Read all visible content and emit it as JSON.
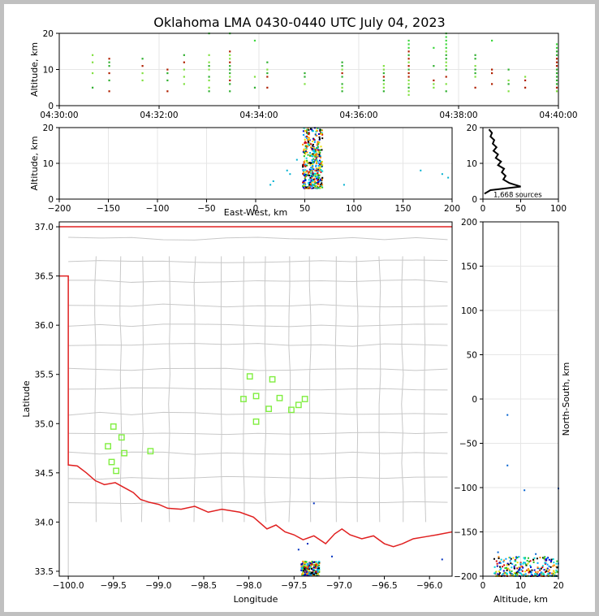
{
  "title": "Oklahoma LMA 0430-0440 UTC July 04, 2023",
  "colors": {
    "state_border": "#e02020",
    "county_lines": "#c8c8c8",
    "station_marker": "#80ee40",
    "grid": "#e6e6e6"
  },
  "chart_data": [
    {
      "id": "time-height",
      "type": "scatter",
      "ylabel": "Altitude, km",
      "ylim": [
        0,
        20
      ],
      "xlim": [
        "04:30:00",
        "04:40:00"
      ],
      "xticks": [
        "04:30:00",
        "04:32:00",
        "04:34:00",
        "04:36:00",
        "04:38:00",
        "04:40:00"
      ],
      "yticks": [
        "0",
        "10",
        "20"
      ],
      "columns": [
        {
          "t": "04:30:40",
          "z": [
            5,
            9,
            12,
            14
          ]
        },
        {
          "t": "04:31:00",
          "z": [
            4,
            7,
            9,
            11,
            12,
            13
          ]
        },
        {
          "t": "04:31:40",
          "z": [
            7,
            9,
            11,
            13
          ]
        },
        {
          "t": "04:32:10",
          "z": [
            4,
            7,
            9,
            10
          ]
        },
        {
          "t": "04:32:30",
          "z": [
            6,
            8,
            10,
            12,
            14
          ]
        },
        {
          "t": "04:33:00",
          "z": [
            4,
            5,
            7,
            8,
            10,
            11,
            12,
            14,
            20
          ]
        },
        {
          "t": "04:33:25",
          "z": [
            4,
            6,
            7,
            8,
            9,
            10,
            11,
            12,
            13,
            14,
            15,
            20
          ]
        },
        {
          "t": "04:33:55",
          "z": [
            5,
            8,
            18
          ]
        },
        {
          "t": "04:34:10",
          "z": [
            5,
            8,
            9,
            10,
            12
          ]
        },
        {
          "t": "04:34:55",
          "z": [
            6,
            8,
            9
          ]
        },
        {
          "t": "04:35:40",
          "z": [
            4,
            5,
            6,
            8,
            9,
            10,
            11,
            12
          ]
        },
        {
          "t": "04:36:30",
          "z": [
            4,
            5,
            6,
            7,
            8,
            9,
            10,
            11
          ]
        },
        {
          "t": "04:37:00",
          "z": [
            3,
            4,
            5,
            6,
            7,
            8,
            9,
            10,
            11,
            12,
            13,
            14,
            15,
            16,
            17,
            18
          ]
        },
        {
          "t": "04:37:30",
          "z": [
            5,
            6,
            7,
            11,
            16
          ]
        },
        {
          "t": "04:37:45",
          "z": [
            4,
            6,
            8,
            10,
            11,
            12,
            13,
            14,
            15,
            16,
            17,
            18,
            19,
            20
          ]
        },
        {
          "t": "04:38:20",
          "z": [
            5,
            8,
            9,
            10,
            11,
            13,
            14
          ]
        },
        {
          "t": "04:38:40",
          "z": [
            6,
            9,
            10,
            18
          ]
        },
        {
          "t": "04:39:00",
          "z": [
            4,
            6,
            7,
            10
          ]
        },
        {
          "t": "04:39:20",
          "z": [
            5,
            7,
            8
          ]
        },
        {
          "t": "04:39:58",
          "z": [
            4,
            5,
            6,
            7,
            8,
            9,
            10,
            11,
            12,
            13,
            14,
            15,
            16,
            17
          ]
        }
      ]
    },
    {
      "id": "ew-height",
      "type": "scatter",
      "xlabel": "East-West, km",
      "ylabel": "Altitude, km",
      "xlim": [
        -200,
        200
      ],
      "ylim": [
        0,
        20
      ],
      "xticks": [
        "−200",
        "−150",
        "−100",
        "−50",
        "0",
        "50",
        "100",
        "150",
        "200"
      ],
      "yticks": [
        "0",
        "10",
        "20"
      ],
      "core": {
        "x": [
          48,
          68
        ],
        "z": [
          3,
          20
        ]
      },
      "outliers": [
        {
          "x": 15,
          "z": 4
        },
        {
          "x": 18,
          "z": 5
        },
        {
          "x": 32,
          "z": 8
        },
        {
          "x": 35,
          "z": 7
        },
        {
          "x": 42,
          "z": 11
        },
        {
          "x": 90,
          "z": 4
        },
        {
          "x": 168,
          "z": 8
        },
        {
          "x": 190,
          "z": 7
        },
        {
          "x": 196,
          "z": 6
        }
      ]
    },
    {
      "id": "altitude-histogram",
      "type": "line",
      "xlim": [
        0,
        100
      ],
      "ylim": [
        0,
        20
      ],
      "xticks": [
        "0",
        "50",
        "100"
      ],
      "yticks": [
        "0",
        "10",
        "20"
      ],
      "annotation": "1,668 sources",
      "profile": [
        {
          "z": 19.5,
          "n": 8
        },
        {
          "z": 18.5,
          "n": 12
        },
        {
          "z": 17.5,
          "n": 10
        },
        {
          "z": 16.5,
          "n": 15
        },
        {
          "z": 15.5,
          "n": 13
        },
        {
          "z": 14.5,
          "n": 18
        },
        {
          "z": 13.5,
          "n": 14
        },
        {
          "z": 12.5,
          "n": 20
        },
        {
          "z": 11.5,
          "n": 17
        },
        {
          "z": 10.5,
          "n": 24
        },
        {
          "z": 9.5,
          "n": 20
        },
        {
          "z": 8.5,
          "n": 28
        },
        {
          "z": 7.5,
          "n": 25
        },
        {
          "z": 6.5,
          "n": 30
        },
        {
          "z": 5.5,
          "n": 27
        },
        {
          "z": 4.5,
          "n": 35
        },
        {
          "z": 3.5,
          "n": 50
        },
        {
          "z": 2.5,
          "n": 10
        },
        {
          "z": 1.5,
          "n": 2
        }
      ]
    },
    {
      "id": "plan-view",
      "type": "scatter",
      "xlabel": "Longitude",
      "ylabel": "Latitude",
      "xlim": [
        -100.1,
        -95.75
      ],
      "ylim": [
        33.45,
        37.05
      ],
      "xticks": [
        "−100.0",
        "−99.5",
        "−99.0",
        "−98.5",
        "−98.0",
        "−97.5",
        "−97.0",
        "−96.5",
        "−96.0"
      ],
      "yticks": [
        "33.5",
        "34.0",
        "34.5",
        "35.0",
        "35.5",
        "36.0",
        "36.5",
        "37.0"
      ],
      "stations": [
        {
          "lon": -99.5,
          "lat": 34.97
        },
        {
          "lon": -99.41,
          "lat": 34.86
        },
        {
          "lon": -99.56,
          "lat": 34.77
        },
        {
          "lon": -99.38,
          "lat": 34.7
        },
        {
          "lon": -99.52,
          "lat": 34.61
        },
        {
          "lon": -99.47,
          "lat": 34.52
        },
        {
          "lon": -99.09,
          "lat": 34.72
        },
        {
          "lon": -97.99,
          "lat": 35.48
        },
        {
          "lon": -97.74,
          "lat": 35.45
        },
        {
          "lon": -98.06,
          "lat": 35.25
        },
        {
          "lon": -97.92,
          "lat": 35.28
        },
        {
          "lon": -97.66,
          "lat": 35.26
        },
        {
          "lon": -97.78,
          "lat": 35.15
        },
        {
          "lon": -97.53,
          "lat": 35.14
        },
        {
          "lon": -97.45,
          "lat": 35.19
        },
        {
          "lon": -97.38,
          "lat": 35.25
        },
        {
          "lon": -97.92,
          "lat": 35.02
        }
      ],
      "source_cluster": {
        "lon": [
          -97.42,
          -97.22
        ],
        "lat": [
          33.45,
          33.6
        ]
      },
      "scattered_sources": [
        {
          "lon": -97.28,
          "lat": 34.19
        },
        {
          "lon": -97.45,
          "lat": 33.72
        },
        {
          "lon": -97.08,
          "lat": 33.65
        },
        {
          "lon": -97.35,
          "lat": 33.78
        },
        {
          "lon": -95.86,
          "lat": 33.62
        }
      ]
    },
    {
      "id": "height-ns",
      "type": "scatter",
      "xlabel": "Altitude, km",
      "ylabel": "North-South, km",
      "xlim": [
        0,
        20
      ],
      "ylim": [
        -200,
        200
      ],
      "xticks": [
        "0",
        "10",
        "20"
      ],
      "yticks": [
        "−200",
        "−150",
        "−100",
        "−50",
        "0",
        "50",
        "100",
        "150",
        "200"
      ],
      "core": {
        "z": [
          3,
          20
        ],
        "y": [
          -200,
          -178
        ]
      },
      "outliers": [
        {
          "z": 6.5,
          "y": -18
        },
        {
          "z": 6.5,
          "y": -75
        },
        {
          "z": 11,
          "y": -103
        },
        {
          "z": 4,
          "y": -173
        },
        {
          "z": 14,
          "y": -175
        },
        {
          "z": 20,
          "y": -101
        }
      ]
    }
  ]
}
